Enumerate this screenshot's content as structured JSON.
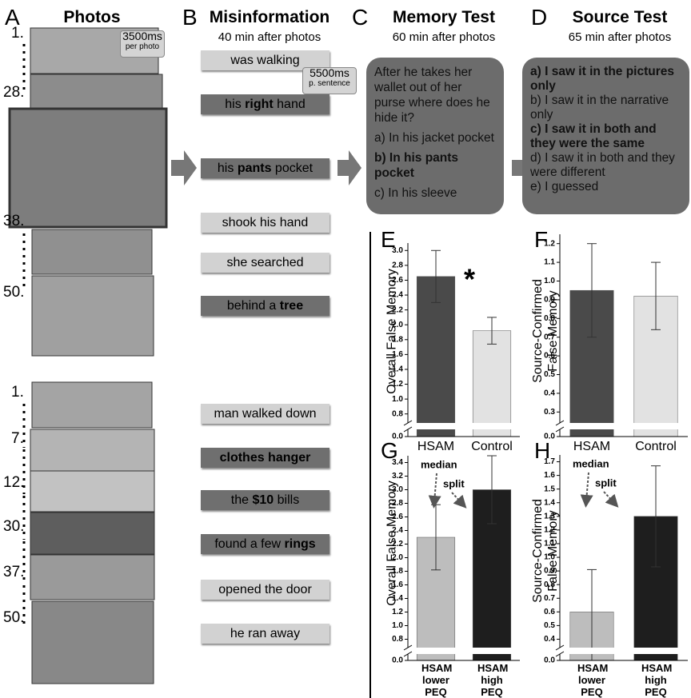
{
  "panels": {
    "photos": {
      "letter": "A",
      "title": "Photos",
      "badge": {
        "value": "3500ms",
        "unit": "per photo"
      },
      "set1": [
        "1.",
        "28.",
        "38.",
        "50."
      ],
      "set2": [
        "1.",
        "7.",
        "12.",
        "30.",
        "37.",
        "50."
      ]
    },
    "misinformation": {
      "letter": "B",
      "title": "Misinformation",
      "subtitle": "40 min after photos",
      "badge": {
        "value": "5500ms",
        "unit": "p. sentence"
      },
      "items": [
        {
          "color": "#d2d2d2",
          "segments": [
            {
              "text": "was walking"
            }
          ]
        },
        {
          "color": "#6f6f6f",
          "segments": [
            {
              "text": "his "
            },
            {
              "text": "right",
              "bold": true
            },
            {
              "text": " hand"
            }
          ]
        },
        {
          "color": "#6f6f6f",
          "segments": [
            {
              "text": "his "
            },
            {
              "text": "pants",
              "bold": true
            },
            {
              "text": " pocket"
            }
          ]
        },
        {
          "color": "#d2d2d2",
          "segments": [
            {
              "text": "shook his hand"
            }
          ]
        },
        {
          "color": "#d2d2d2",
          "segments": [
            {
              "text": "she searched"
            }
          ]
        },
        {
          "color": "#6f6f6f",
          "segments": [
            {
              "text": "behind a "
            },
            {
              "text": "tree",
              "bold": true
            }
          ]
        },
        {
          "color": "#d2d2d2",
          "segments": [
            {
              "text": "man walked down"
            }
          ]
        },
        {
          "color": "#6f6f6f",
          "segments": [
            {
              "text": "clothes hanger",
              "bold": true
            }
          ]
        },
        {
          "color": "#6f6f6f",
          "segments": [
            {
              "text": "the "
            },
            {
              "text": "$10",
              "bold": true
            },
            {
              "text": " bills"
            }
          ]
        },
        {
          "color": "#6f6f6f",
          "segments": [
            {
              "text": "found a few "
            },
            {
              "text": "rings",
              "bold": true
            }
          ]
        },
        {
          "color": "#d2d2d2",
          "segments": [
            {
              "text": "opened the door"
            }
          ]
        },
        {
          "color": "#d2d2d2",
          "segments": [
            {
              "text": "he ran away"
            }
          ]
        }
      ]
    },
    "memory_test": {
      "letter": "C",
      "title": "Memory Test",
      "subtitle": "60 min after photos",
      "question": "After he takes her wallet out of her purse where does he hide it?",
      "options": [
        {
          "text": "a) In his jacket pocket"
        },
        {
          "text": "b) In his pants pocket",
          "bold": true
        },
        {
          "text": "c) In his sleeve"
        }
      ]
    },
    "source_test": {
      "letter": "D",
      "title": "Source Test",
      "subtitle": "65 min after photos",
      "options": [
        {
          "text": "a) I saw it in the pictures only",
          "bold": true
        },
        {
          "text": "b) I saw it in the narrative only"
        },
        {
          "text": "c) I saw it in both and they were the same",
          "bold": true
        },
        {
          "text": "d) I saw it in both and they were different"
        },
        {
          "text": "e) I guessed"
        }
      ]
    }
  },
  "chart_data": [
    {
      "letter": "E",
      "type": "bar",
      "ylabel": "Overall False Memory",
      "categories": [
        "HSAM",
        "Control"
      ],
      "values": [
        2.65,
        1.92
      ],
      "errors": [
        0.35,
        0.18
      ],
      "colors": [
        "#4a4a4a",
        "#e2e2e2"
      ],
      "ylim": [
        0.7,
        3.1
      ],
      "yticks": [
        {
          "value": 0,
          "label": "0.0"
        },
        0.8,
        {
          "value": 1,
          "label": "1.0"
        },
        1.2,
        1.4,
        1.6,
        1.8,
        {
          "value": 2,
          "label": "2.0"
        },
        2.2,
        2.4,
        2.6,
        2.8,
        {
          "value": 3,
          "label": "3.0"
        }
      ],
      "annotations": [
        "*"
      ]
    },
    {
      "letter": "F",
      "type": "bar",
      "ylabel": "Source-Confirmed False Memory",
      "categories": [
        "HSAM",
        "Control"
      ],
      "values": [
        0.95,
        0.92
      ],
      "errors": [
        0.25,
        0.18
      ],
      "colors": [
        "#4a4a4a",
        "#e2e2e2"
      ],
      "ylim": [
        0.25,
        1.25
      ],
      "yticks": [
        {
          "value": 0,
          "label": "0.0"
        },
        0.3,
        0.4,
        0.5,
        0.6,
        0.7,
        0.8,
        0.9,
        {
          "value": 1,
          "label": "1.0"
        },
        1.1,
        1.2
      ]
    },
    {
      "letter": "G",
      "type": "bar",
      "ylabel": "Overall False Memory",
      "categories": [
        "HSAM lower PEQ",
        "HSAM high PEQ"
      ],
      "values": [
        2.3,
        3.0
      ],
      "errors": [
        0.48,
        0.5
      ],
      "colors": [
        "#bdbdbd",
        "#1e1e1e"
      ],
      "ylim": [
        0.7,
        3.5
      ],
      "yticks": [
        {
          "value": 0,
          "label": "0.0"
        },
        0.8,
        {
          "value": 1,
          "label": "1.0"
        },
        1.2,
        1.4,
        1.6,
        1.8,
        {
          "value": 2,
          "label": "2.0"
        },
        2.2,
        2.4,
        2.6,
        2.8,
        {
          "value": 3,
          "label": "3.0"
        },
        3.2,
        3.4
      ],
      "annotations": [
        "median",
        "split"
      ]
    },
    {
      "letter": "H",
      "type": "bar",
      "ylabel": "Source-Confirmed False Memory",
      "categories": [
        "HSAM lower PEQ",
        "HSAM high PEQ"
      ],
      "values": [
        0.6,
        1.3
      ],
      "errors": [
        0.31,
        0.37
      ],
      "colors": [
        "#bdbdbd",
        "#1e1e1e"
      ],
      "ylim": [
        0.35,
        1.75
      ],
      "yticks": [
        {
          "value": 0,
          "label": "0.0"
        },
        0.4,
        0.5,
        0.6,
        0.7,
        0.8,
        0.9,
        {
          "value": 1,
          "label": "1.0"
        },
        1.1,
        1.2,
        1.3,
        1.4,
        1.5,
        1.6,
        1.7
      ],
      "annotations": [
        "median",
        "split"
      ]
    }
  ]
}
